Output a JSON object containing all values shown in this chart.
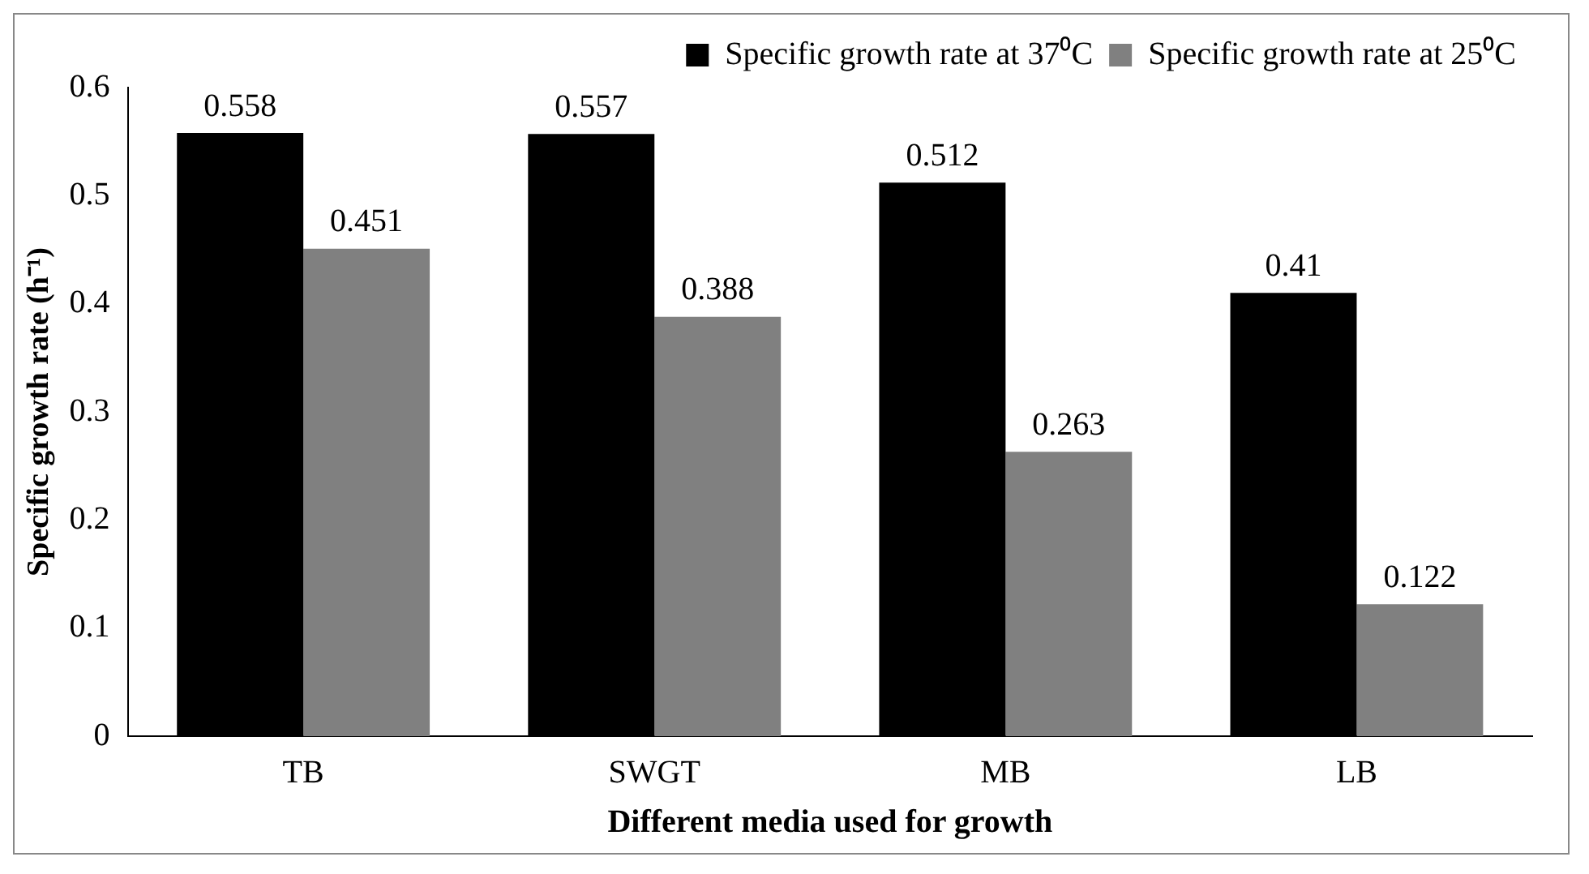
{
  "chart_data": {
    "type": "bar",
    "xlabel": "Different media used for growth",
    "ylabel": "Specific growth rate (h⁻¹)",
    "categories": [
      "TB",
      "SWGT",
      "MB",
      "LB"
    ],
    "series": [
      {
        "name": "Specific growth rate at 37⁰C",
        "color": "#000000",
        "values": [
          0.558,
          0.557,
          0.512,
          0.41
        ]
      },
      {
        "name": "Specific growth rate at 25⁰C",
        "color": "#808080",
        "values": [
          0.451,
          0.388,
          0.263,
          0.122
        ]
      }
    ],
    "ylim": [
      0,
      0.6
    ],
    "yticks": [
      0,
      0.1,
      0.2,
      0.3,
      0.4,
      0.5,
      0.6
    ],
    "grid": false,
    "legend": "top right",
    "data_labels": true
  }
}
